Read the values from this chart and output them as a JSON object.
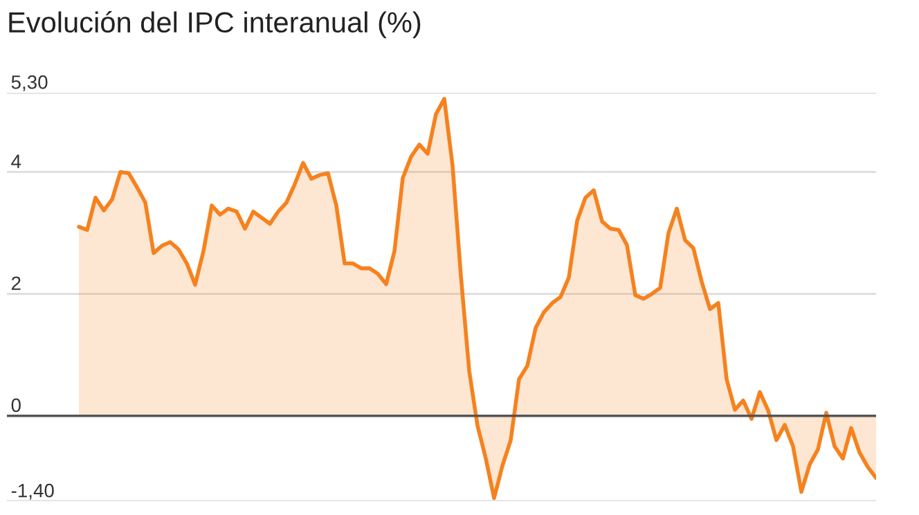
{
  "chart_data": {
    "type": "area",
    "title": "Evolución del IPC interanual (%)",
    "categories": [
      null,
      null,
      null,
      null,
      null,
      null,
      null,
      null,
      null,
      null,
      null,
      null,
      null,
      null,
      null,
      null,
      null,
      null,
      null,
      null,
      null,
      null,
      null,
      null,
      null,
      null,
      null,
      null,
      null,
      null,
      null,
      null,
      null,
      null,
      null,
      null,
      null,
      null,
      null,
      null,
      null,
      null,
      null,
      null,
      null,
      null,
      null,
      null,
      null,
      null,
      null,
      null,
      null,
      null,
      null,
      null,
      null,
      null,
      null,
      null,
      null,
      null,
      null,
      null,
      null,
      null,
      null,
      null,
      null,
      null,
      null,
      null,
      null,
      null,
      null,
      null,
      null,
      null,
      null,
      null,
      null,
      null,
      null,
      null,
      null,
      null,
      null,
      null,
      null,
      null,
      null,
      null,
      null,
      null,
      null,
      null,
      null
    ],
    "series": [
      {
        "color": "#f5821f",
        "values": [
          3.1,
          3.05,
          3.58,
          3.37,
          3.55,
          4.0,
          3.98,
          3.75,
          3.5,
          2.67,
          2.79,
          2.85,
          2.73,
          2.5,
          2.15,
          2.7,
          3.45,
          3.3,
          3.4,
          3.35,
          3.07,
          3.35,
          3.25,
          3.15,
          3.35,
          3.5,
          3.8,
          4.15,
          3.89,
          3.95,
          3.98,
          3.45,
          2.5,
          2.5,
          2.42,
          2.42,
          2.33,
          2.16,
          2.7,
          3.9,
          4.25,
          4.45,
          4.3,
          4.95,
          5.2,
          4.1,
          2.3,
          0.74,
          -0.16,
          -0.7,
          -1.35,
          -0.82,
          -0.4,
          0.6,
          0.82,
          1.44,
          1.7,
          1.85,
          1.95,
          2.27,
          3.2,
          3.58,
          3.7,
          3.19,
          3.07,
          3.05,
          2.8,
          1.98,
          1.92,
          2.0,
          2.1,
          3.0,
          3.4,
          2.88,
          2.75,
          2.2,
          1.75,
          1.85,
          0.6,
          0.1,
          0.25,
          -0.05,
          0.39,
          0.09,
          -0.4,
          -0.15,
          -0.5,
          -1.25,
          -0.8,
          -0.55,
          0.05,
          -0.5,
          -0.7,
          -0.2,
          -0.6,
          -0.84,
          -1.02
        ]
      }
    ],
    "ylim": [
      -1.4,
      5.3
    ],
    "yticks": [
      {
        "value": -1.4,
        "label": "-1,40"
      },
      0,
      2,
      4,
      {
        "value": 5.3,
        "label": "5,30"
      }
    ],
    "grid": "y",
    "tick_labels": "y",
    "ref_lines": [
      {
        "axis": "y",
        "value": 0,
        "color": "#555555"
      }
    ]
  }
}
